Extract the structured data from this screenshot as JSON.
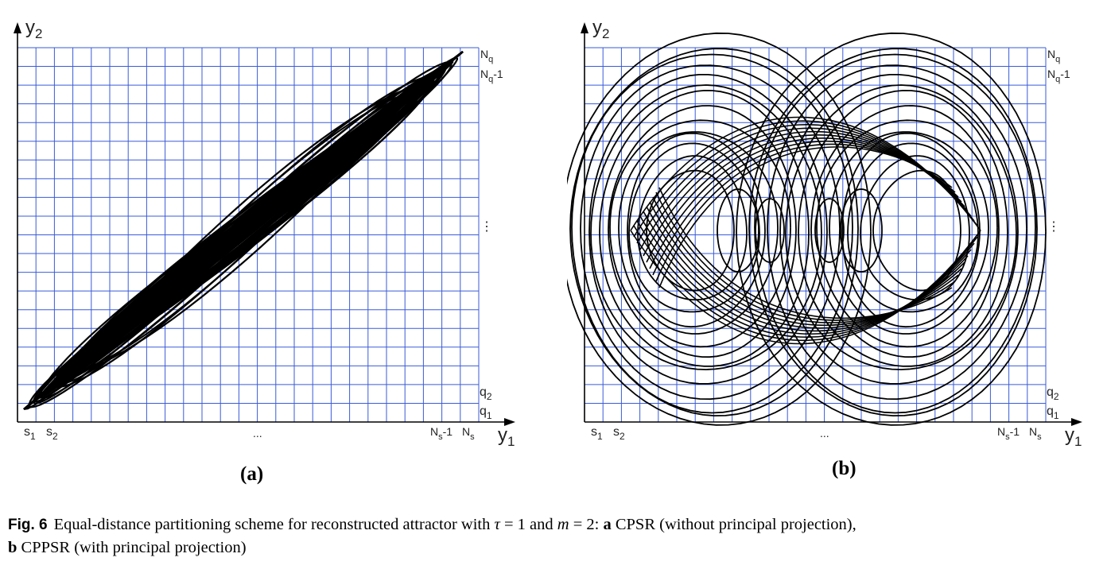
{
  "figure": {
    "panel_a": {
      "label": "(a)",
      "y_axis": "y",
      "y_axis_sub": "2",
      "x_axis": "y",
      "x_axis_sub": "1",
      "col_labels": [
        {
          "main": "s",
          "sub": "1"
        },
        {
          "main": "s",
          "sub": "2"
        },
        {
          "main": "...",
          "sub": ""
        },
        {
          "main": "N",
          "sub": "s",
          "suffix": "-1"
        },
        {
          "main": "N",
          "sub": "s",
          "suffix": ""
        }
      ],
      "row_labels": [
        {
          "main": "N",
          "sub": "q",
          "suffix": ""
        },
        {
          "main": "N",
          "sub": "q",
          "suffix": "-1"
        },
        {
          "main": "⋮",
          "sub": "",
          "suffix": ""
        },
        {
          "main": "q",
          "sub": "2",
          "suffix": ""
        },
        {
          "main": "q",
          "sub": "1",
          "suffix": ""
        }
      ]
    },
    "panel_b": {
      "label": "(b)",
      "y_axis": "y",
      "y_axis_sub": "2",
      "x_axis": "y",
      "x_axis_sub": "1",
      "col_labels": [
        {
          "main": "s",
          "sub": "1"
        },
        {
          "main": "s",
          "sub": "2"
        },
        {
          "main": "...",
          "sub": ""
        },
        {
          "main": "N",
          "sub": "s",
          "suffix": "-1"
        },
        {
          "main": "N",
          "sub": "s",
          "suffix": ""
        }
      ],
      "row_labels": [
        {
          "main": "N",
          "sub": "q",
          "suffix": ""
        },
        {
          "main": "N",
          "sub": "q",
          "suffix": "-1"
        },
        {
          "main": "⋮",
          "sub": "",
          "suffix": ""
        },
        {
          "main": "q",
          "sub": "2",
          "suffix": ""
        },
        {
          "main": "q",
          "sub": "1",
          "suffix": ""
        }
      ]
    },
    "colors": {
      "grid": "#3a5bd9",
      "trajectory": "#000000"
    },
    "grid": {
      "columns": 25,
      "rows": 20
    }
  },
  "caption": {
    "lead": "Fig. 6",
    "text_1": "Equal-distance partitioning scheme for reconstructed attractor with ",
    "tau": "τ",
    "text_2": " = 1 and ",
    "m": "m",
    "text_3": " = 2: ",
    "a_label": "a",
    "a_text": " CPSR (without principal projection),",
    "b_label": "b",
    "b_text": " CPPSR (with principal projection)"
  }
}
